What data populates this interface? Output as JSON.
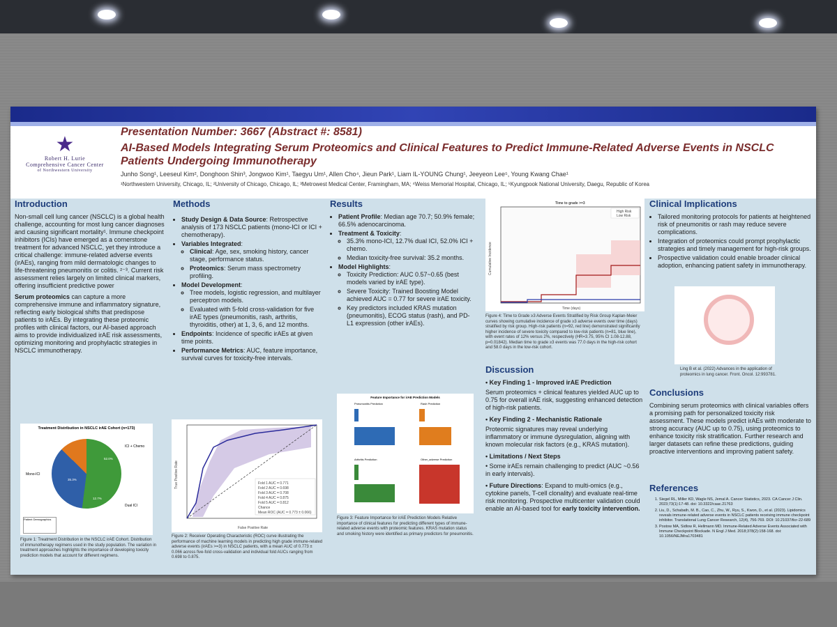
{
  "poster": {
    "logo": {
      "line1": "Robert H. Lurie",
      "line2": "Comprehensive Cancer Center",
      "line3": "of Northwestern University"
    },
    "presentation": "Presentation Number: 3667 (Abstract #: 8581)",
    "title": "AI-Based Models Integrating Serum Proteomics and Clinical Features to Predict Immune-Related Adverse Events in NSCLC Patients Undergoing Immunotherapy",
    "authors": "Junho Song¹, Leeseul Kim², Donghoon Shin³, Jongwoo Kim¹, Taegyu Um¹, Allen Cho⁴, Jieun Park¹, Liam IL-YOUNG Chung¹, Jeeyeon Lee⁵, Young Kwang Chae¹",
    "affiliations": "¹Northwestern University, Chicago, IL; ²University of Chicago, Chicago, IL; ³Metrowest Medical Center, Framingham, MA; ⁴Weiss Memorial Hospital, Chicago, IL; ⁵Kyungpook National University, Daegu, Republic of Korea"
  },
  "intro": {
    "heading": "Introduction",
    "p1": "Non-small cell lung cancer (NSCLC) is a global health challenge, accounting for most lung cancer diagnoses and causing significant mortality¹. Immune checkpoint inhibitors (ICIs) have emerged as a cornerstone treatment for advanced NSCLC, yet they introduce a critical challenge: immune-related adverse events (irAEs), ranging from mild dermatologic changes to life-threatening pneumonitis or colitis. ²⁻³. Current risk assessment relies largely on limited clinical markers, offering insufficient predictive power",
    "p2_bold": "Serum proteomics",
    "p2": " can capture a more comprehensive immune and inflammatory signature, reflecting early biological shifts that predispose patients to irAEs. By integrating these proteomic profiles with clinical factors, our AI-based approach aims to provide individualized irAE risk assessments, optimizing monitoring and prophylactic strategies in NSCLC immunotherapy.",
    "fig_title": "Treatment Distribution in NSCLC irAE Cohort (n=173)",
    "pie_labels": [
      "ICI + Chemo",
      "Mono-ICI",
      "Dual ICI"
    ],
    "pie_pcts": [
      "52.0%",
      "35.3%",
      "12.7%"
    ],
    "pie_values": [
      52.0,
      35.3,
      12.7
    ],
    "demo_box": "Patient Demographics",
    "caption": "Figure 1: Treatment Distribution in the NSCLC irAE Cohort. Distribution of immunotherapy regimens used in the study population. The variation in treatment approaches highlights the importance of developing toxicity prediction models that account for different regimens."
  },
  "methods": {
    "heading": "Methods",
    "items": [
      {
        "bold": "Study Design & Data Source",
        "text": ": Retrospective analysis of 173 NSCLC patients (mono-ICI or ICI + chemotherapy)."
      },
      {
        "bold": "Variables Integrated",
        "text": ":"
      },
      {
        "bold": "Model Development",
        "text": ":"
      },
      {
        "bold": "Endpoints",
        "text": ": Incidence of specific irAEs at given time points."
      },
      {
        "bold": "Performance Metrics",
        "text": ": AUC, feature importance, survival curves for toxicity-free intervals."
      }
    ],
    "vars": [
      {
        "bold": "Clinical",
        "text": ": Age, sex, smoking history, cancer stage, performance status."
      },
      {
        "bold": "Proteomics",
        "text": ": Serum mass spectrometry profiling."
      }
    ],
    "model": [
      "Tree models, logistic regression, and multilayer perceptron models.",
      "Evaluated with 5-fold cross-validation for five irAE types (pneumonitis, rash, arthritis, thyroiditis, other) at 1, 3, 6, and 12 months."
    ],
    "roc_xlabel": "False Positive Rate",
    "roc_ylabel": "True Positive Rate",
    "roc_legend": [
      "Fold 1 AUC = 0.771",
      "Fold 2 AUC = 0.698",
      "Fold 3 AUC = 0.708",
      "Fold 4 AUC = 0.875",
      "Fold 5 AUC = 0.812",
      "Chance",
      "Mean ROC (AUC = 0.773 ± 0.066)"
    ],
    "caption": "Figure 2: Receiver Operating Characteristic (ROC) curve illustrating the performance of machine learning models in predicting high grade immune-related adverse events (irAEs >=3) in NSCLC patients, with a mean AUC of 0.773 ± 0.066 across five-fold cross-validation and individual fold AUCs ranging from 0.698 to 0.875."
  },
  "results": {
    "heading": "Results",
    "items": [
      {
        "bold": "Patient Profile",
        "text": ": Median age 70.7; 50.9% female; 66.5% adenocarcinoma."
      },
      {
        "bold": "Treatment & Toxicity",
        "text": ":"
      },
      {
        "bold": "Model Highlights",
        "text": ":"
      }
    ],
    "tox": [
      "35.3% mono-ICI, 12.7% dual ICI, 52.0% ICI + chemo.",
      "Median toxicity-free survival: 35.2 months."
    ],
    "model": [
      "Toxicity Prediction: AUC 0.57~0.65 (best models varied by irAE type).",
      "Severe Toxicity: Trained Boosting Model achieved AUC = 0.77 for severe irAE toxicity.",
      "Key predictors included KRAS mutation (pneumonitis), ECOG status (rash), and PD-L1 expression (other irAEs)."
    ],
    "fi_title": "Feature Importance for irAE Prediction Models",
    "fi_panels": [
      "Pneumonitis Prediction",
      "Rash Prediction",
      "Arthritis Prediction",
      "Other_adverse Prediction"
    ],
    "caption": "Figure 3: Feature Importance for irAE Prediction Models Relative importance of clinical features for predicting different types of immune-related adverse events with proteomic features. KRAS mutation status and smoking history were identified as primary predictors for pneumonitis."
  },
  "km": {
    "title": "Time to grade >=3",
    "legend": [
      "High Risk",
      "Low Risk"
    ],
    "xlabel": "Time (days)",
    "ylabel": "Cumulative Incidence",
    "caption": "Figure 4: Time to Grade ≥3 Adverse Events Stratified by Risk Group Kaplan-Meier curves showing cumulative incidence of grade ≥3 adverse events over time (days) stratified by risk group. High-risk patients (n=92, red line) demonstrated significantly higher incidence of severe toxicity compared to low-risk patients (n=81, blue line), with event rates of 12% versus 2%, respectively (HR=3.75, 95% CI 1.08-12.88, p=0.01842). Median time to grade ≥3 events was 77.0 days in the high-risk cohort and 58.0 days in the low-risk cohort."
  },
  "discussion": {
    "heading": "Discussion",
    "k1_title": "• Key Finding 1 - Improved irAE Prediction",
    "k1": "Serum proteomics + clinical features yielded AUC up to 0.75 for overall irAE risk, suggesting enhanced detection of high-risk patients.",
    "k2_title": "• Key Finding 2 - Mechanistic Rationale",
    "k2": "Proteomic signatures may reveal underlying inflammatory or immune dysregulation, aligning with known molecular risk factors (e.g., KRAS mutation).",
    "lim_title": "• Limitations / Next Steps",
    "lim": "• Some irAEs remain challenging to predict (AUC ~0.56 in early intervals).",
    "fut_bold": "• Future Directions",
    "fut": ": Expand to multi-omics (e.g., cytokine panels, T-cell clonality) and evaluate real-time risk monitoring. Prospective multicenter validation could enable an AI-based tool for ",
    "fut_end": "early toxicity intervention."
  },
  "clinical": {
    "heading": "Clinical Implications",
    "items": [
      "Tailored monitoring protocols for patients at heightened risk of pneumonitis or rash may reduce severe complications.",
      "Integration of proteomics could prompt prophylactic strategies and timely management for high-risk groups.",
      "Prospective validation could enable broader clinical adoption, enhancing patient safety in immunotherapy."
    ],
    "img_caption": "Ling B et al. (2022) Advances in the application of proteomics in lung cancer. Front. Oncol. 12:993781."
  },
  "conclusions": {
    "heading": "Conclusions",
    "text": "Combining serum proteomics with clinical variables offers a promising path for personalized toxicity risk assessment. These models predict irAEs with moderate to strong accuracy (AUC up to 0.75), using proteomics to enhance toxicity risk stratification. Further research and larger datasets can refine these predictions, guiding proactive interventions and improving patient safety."
  },
  "references": {
    "heading": "References",
    "items": [
      "Siegel RL, Miller KD, Wagle NS, Jemal A. Cancer Statistics, 2023. CA Cancer J Clin. 2023;73(1):17-48. doi: 10.3322/caac.21763",
      "Liu, D., Schabath, M. B., Cao, C., Zhu, W., Ryu, S., Kwon, D., et al. (2023). Lipidomics reveals immune-related adverse events in NSCLC patients receiving immune checkpoint inhibitor. Translational Lung Cancer Research, 12(4), 756-769. DOI: 10.21037/tlcr-22-689",
      "Postow MA, Sidlow R, Hellmann MD. Immune-Related Adverse Events Associated with Immune Checkpoint Blockade. N Engl J Med. 2018;378(2):158-168. doi: 10.1056/NEJMra1703481"
    ]
  },
  "colors": {
    "title": "#7a2c2c",
    "heading": "#1d3c7a",
    "panel": "#cfe0ea",
    "pie_green": "#3f9a3a",
    "pie_blue": "#2f5fa8",
    "pie_orange": "#e0781d"
  }
}
